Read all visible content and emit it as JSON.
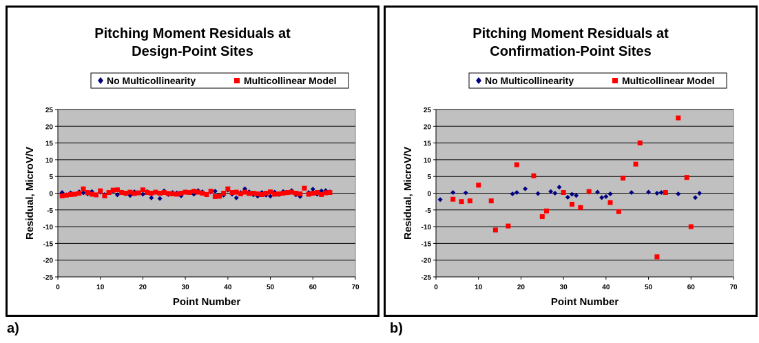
{
  "panel_labels": [
    "a)",
    "b)"
  ],
  "colors": {
    "plot_bg": "#c0c0c0",
    "series1": "#000080",
    "series2": "#ff0000",
    "grid": "#000000"
  },
  "chart_data": [
    {
      "type": "scatter",
      "title": [
        "Pitching Moment Residuals at",
        "Design-Point Sites"
      ],
      "xlabel": "Point Number",
      "ylabel": "Residual, MicroV/V",
      "xlim": [
        0,
        70
      ],
      "ylim": [
        -25,
        25
      ],
      "xticks": [
        0,
        10,
        20,
        30,
        40,
        50,
        60,
        70
      ],
      "yticks": [
        25,
        20,
        15,
        10,
        5,
        0,
        -5,
        -10,
        -15,
        -20,
        -25
      ],
      "grid": true,
      "legend_position": "top",
      "series": [
        {
          "name": "No Multicollinearity",
          "marker": "diamond",
          "color": "#000080",
          "x": [
            1,
            2,
            3,
            4,
            5,
            6,
            7,
            8,
            9,
            10,
            11,
            12,
            13,
            14,
            15,
            16,
            17,
            18,
            19,
            20,
            21,
            22,
            23,
            24,
            25,
            26,
            27,
            28,
            29,
            30,
            31,
            32,
            33,
            34,
            35,
            36,
            37,
            38,
            39,
            40,
            41,
            42,
            43,
            44,
            45,
            46,
            47,
            48,
            49,
            50,
            51,
            52,
            53,
            54,
            55,
            56,
            57,
            58,
            59,
            60,
            61,
            62,
            63,
            64
          ],
          "y": [
            0.2,
            -0.5,
            0.1,
            -0.3,
            0.4,
            0.1,
            -0.2,
            0.5,
            -0.6,
            0.3,
            -0.4,
            0.2,
            0.6,
            -0.5,
            0.3,
            -0.2,
            -0.7,
            0.4,
            0.1,
            -0.3,
            0.5,
            -1.4,
            0.3,
            -1.6,
            0.7,
            -0.4,
            0.2,
            0.1,
            -0.8,
            0.4,
            0.2,
            -0.3,
            0.8,
            0.4,
            -0.5,
            0.3,
            0.6,
            -1.0,
            -0.6,
            0.9,
            -0.3,
            -1.4,
            0.2,
            1.3,
            0.4,
            -0.5,
            -0.9,
            0.2,
            -0.6,
            -0.9,
            0.3,
            -0.4,
            0.5,
            0.1,
            0.8,
            -0.5,
            -1.0,
            1.5,
            0.2,
            1.2,
            -0.3,
            0.7,
            0.8,
            0.4
          ]
        },
        {
          "name": "Multicollinear Model",
          "marker": "square",
          "color": "#ff0000",
          "x": [
            1,
            2,
            3,
            4,
            5,
            6,
            7,
            8,
            9,
            10,
            11,
            12,
            13,
            14,
            15,
            16,
            17,
            18,
            19,
            20,
            21,
            22,
            23,
            24,
            25,
            26,
            27,
            28,
            29,
            30,
            31,
            32,
            33,
            34,
            35,
            36,
            37,
            38,
            39,
            40,
            41,
            42,
            43,
            44,
            45,
            46,
            47,
            48,
            49,
            50,
            51,
            52,
            53,
            54,
            55,
            56,
            57,
            58,
            59,
            60,
            61,
            62,
            63,
            64
          ],
          "y": [
            -0.8,
            -0.6,
            -0.4,
            -0.3,
            0.0,
            1.3,
            0.2,
            -0.3,
            -0.5,
            0.7,
            -0.8,
            0.2,
            0.9,
            1.0,
            0.2,
            0.0,
            0.3,
            -0.1,
            0.1,
            1.0,
            0.2,
            0.0,
            0.3,
            0.0,
            0.2,
            -0.1,
            -0.2,
            -0.3,
            0.0,
            0.3,
            0.2,
            0.6,
            0.3,
            0.0,
            -0.4,
            0.6,
            -1.0,
            -0.9,
            0.0,
            1.3,
            0.2,
            0.3,
            -0.2,
            0.3,
            -0.1,
            0.0,
            -0.2,
            -0.4,
            0.0,
            0.4,
            -0.3,
            -0.2,
            0.0,
            0.2,
            0.3,
            0.0,
            -0.2,
            1.5,
            -0.3,
            0.0,
            0.2,
            -0.4,
            0.1,
            0.2
          ]
        }
      ]
    },
    {
      "type": "scatter",
      "title": [
        "Pitching Moment Residuals at",
        "Confirmation-Point Sites"
      ],
      "xlabel": "Point Number",
      "ylabel": "Residual, MicroV/V",
      "xlim": [
        0,
        70
      ],
      "ylim": [
        -25,
        25
      ],
      "xticks": [
        0,
        10,
        20,
        30,
        40,
        50,
        60,
        70
      ],
      "yticks": [
        25,
        20,
        15,
        10,
        5,
        0,
        -5,
        -10,
        -15,
        -20,
        -25
      ],
      "grid": true,
      "legend_position": "top",
      "series": [
        {
          "name": "No Multicollinearity",
          "marker": "diamond",
          "color": "#000080",
          "x": [
            1,
            4,
            7,
            18,
            19,
            21,
            24,
            27,
            28,
            29,
            31,
            32,
            33,
            36,
            38,
            39,
            40,
            41,
            46,
            50,
            52,
            53,
            54,
            57,
            61,
            62
          ],
          "y": [
            -1.9,
            0.2,
            0.1,
            -0.2,
            0.2,
            1.3,
            -0.1,
            0.5,
            0.0,
            1.8,
            -1.2,
            -0.3,
            -0.7,
            0.3,
            0.3,
            -1.3,
            -1.0,
            -0.2,
            0.2,
            0.3,
            0.0,
            0.2,
            0.3,
            -0.2,
            -1.3,
            0.0
          ]
        },
        {
          "name": "Multicollinear Model",
          "marker": "square",
          "color": "#ff0000",
          "x": [
            4,
            6,
            8,
            10,
            13,
            14,
            17,
            19,
            23,
            25,
            26,
            30,
            32,
            34,
            36,
            41,
            43,
            44,
            47,
            48,
            52,
            54,
            57,
            59,
            60
          ],
          "y": [
            -1.8,
            -2.5,
            -2.3,
            2.4,
            -2.3,
            -11.0,
            -9.8,
            8.5,
            5.2,
            -7.0,
            -5.3,
            0.2,
            -3.3,
            -4.3,
            0.5,
            -2.8,
            -5.5,
            4.5,
            8.7,
            15.0,
            -19.0,
            0.2,
            22.5,
            4.7,
            -10.0
          ]
        }
      ]
    }
  ]
}
